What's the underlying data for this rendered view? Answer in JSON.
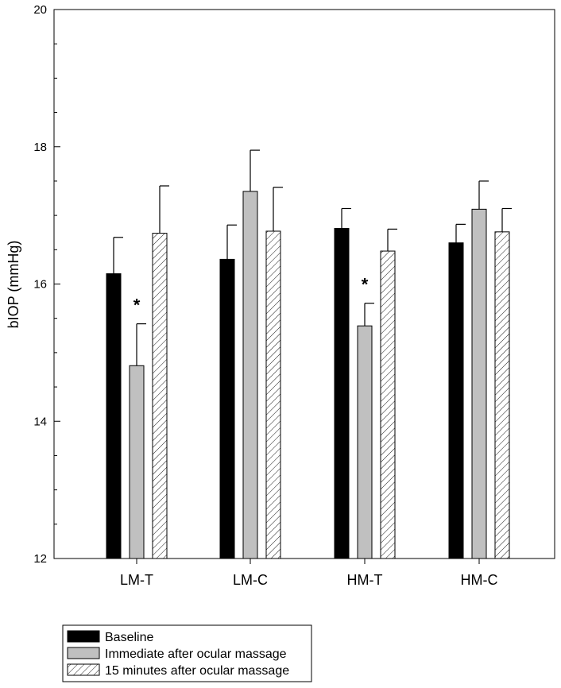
{
  "chart_data": {
    "type": "bar",
    "title": "",
    "xlabel": "",
    "ylabel": "bIOP (mmHg)",
    "ylim": [
      12,
      20
    ],
    "yticks": [
      12,
      14,
      16,
      18,
      20
    ],
    "categories": [
      "LM-T",
      "LM-C",
      "HM-T",
      "HM-C"
    ],
    "series": [
      {
        "name": "Baseline",
        "values": [
          16.15,
          16.36,
          16.81,
          16.6
        ],
        "errors": [
          0.53,
          0.5,
          0.29,
          0.27
        ],
        "fill": "solid",
        "color": "#000000"
      },
      {
        "name": "Immediate after ocular massage",
        "values": [
          14.81,
          17.35,
          15.39,
          17.09
        ],
        "errors": [
          0.61,
          0.6,
          0.33,
          0.41
        ],
        "fill": "solid",
        "color": "#c0c0c0"
      },
      {
        "name": "15 minutes after ocular massage",
        "values": [
          16.74,
          16.77,
          16.48,
          16.76
        ],
        "errors": [
          0.69,
          0.64,
          0.32,
          0.34
        ],
        "fill": "hatched",
        "color": "#ffffff"
      }
    ],
    "annotations": [
      {
        "text": "*",
        "category": "LM-T",
        "series": 1
      },
      {
        "text": "*",
        "category": "HM-T",
        "series": 1
      }
    ],
    "legend": {
      "position": "bottom-left"
    },
    "grid": false
  }
}
